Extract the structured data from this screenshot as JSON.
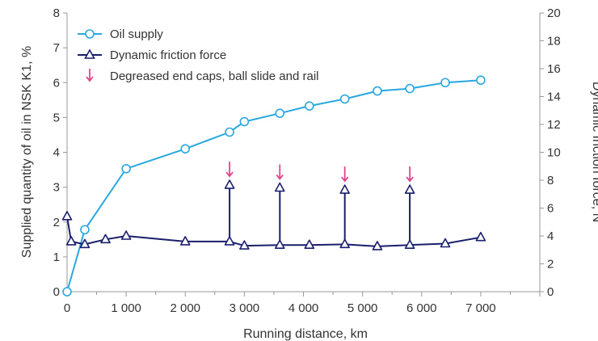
{
  "colors": {
    "oil": "#29a8df",
    "friction": "#1b1f6b",
    "arrow": "#e0458a",
    "axis": "#999999"
  },
  "chart_data": {
    "type": "line",
    "xlabel": "Running distance, km",
    "ylabel_left": "Supplied quantity of oil in NSK K1, %",
    "ylabel_right": "Dynamic friction force, N",
    "xlim": [
      0,
      8000
    ],
    "ylim_left": [
      0,
      8
    ],
    "ylim_right": [
      0,
      20
    ],
    "x_ticks": [
      0,
      1000,
      2000,
      3000,
      4000,
      5000,
      6000,
      7000
    ],
    "x_tick_labels": [
      "0",
      "1 000",
      "2 000",
      "3 000",
      "4 000",
      "5 000",
      "6 000",
      "7 000"
    ],
    "y_left_ticks": [
      "0",
      "1",
      "2",
      "3",
      "4",
      "5",
      "6",
      "7",
      "8"
    ],
    "y_right_ticks": [
      "0",
      "2",
      "4",
      "6",
      "8",
      "10",
      "12",
      "14",
      "16",
      "18",
      "20"
    ],
    "grid": false,
    "legend_position": "top-left",
    "legend": [
      {
        "key": "oil",
        "label": "Oil supply"
      },
      {
        "key": "friction",
        "label": "Dynamic friction force"
      },
      {
        "key": "arrow",
        "label": "Degreased end caps, ball slide and rail"
      }
    ],
    "series": [
      {
        "name": "Oil supply",
        "axis": "left",
        "marker": "circle",
        "points": [
          [
            0,
            0
          ],
          [
            300,
            1.78
          ],
          [
            1000,
            3.53
          ],
          [
            2000,
            4.1
          ],
          [
            2750,
            4.58
          ],
          [
            3000,
            4.88
          ],
          [
            3600,
            5.12
          ],
          [
            4100,
            5.33
          ],
          [
            4700,
            5.53
          ],
          [
            5250,
            5.76
          ],
          [
            5800,
            5.83
          ],
          [
            6400,
            6.0
          ],
          [
            7000,
            6.07
          ]
        ]
      },
      {
        "name": "Dynamic friction force",
        "axis": "right",
        "marker": "triangle",
        "points": [
          [
            0,
            5.4
          ],
          [
            70,
            3.6
          ],
          [
            300,
            3.4
          ],
          [
            650,
            3.75
          ],
          [
            1000,
            4.0
          ],
          [
            2000,
            3.6
          ],
          [
            2750,
            3.6
          ],
          [
            2750,
            7.65
          ],
          [
            2750,
            3.6
          ],
          [
            3000,
            3.3
          ],
          [
            3600,
            3.35
          ],
          [
            3600,
            7.45
          ],
          [
            3600,
            3.35
          ],
          [
            4100,
            3.35
          ],
          [
            4700,
            3.4
          ],
          [
            4700,
            7.3
          ],
          [
            4700,
            3.4
          ],
          [
            5250,
            3.25
          ],
          [
            5800,
            3.35
          ],
          [
            5800,
            7.3
          ],
          [
            5800,
            3.35
          ],
          [
            6400,
            3.45
          ],
          [
            7000,
            3.9
          ]
        ]
      }
    ],
    "degrease_events_km": [
      2750,
      3600,
      4700,
      5800
    ]
  }
}
